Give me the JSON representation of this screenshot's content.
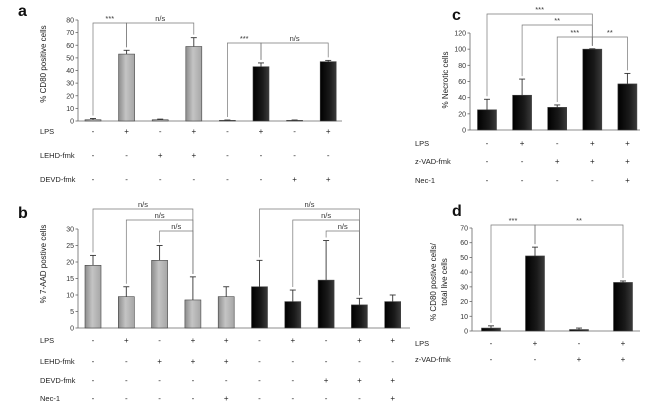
{
  "chart_data": [
    {
      "id": "a",
      "type": "bar",
      "panel_label": "a",
      "ylabel": "% CD80 positive cells",
      "ylim": [
        0,
        80
      ],
      "yticks": [
        0,
        10,
        20,
        30,
        40,
        50,
        60,
        70,
        80
      ],
      "values": [
        1.0,
        53,
        1.0,
        59,
        0.5,
        43,
        0.5,
        47
      ],
      "errors": [
        1.0,
        3,
        0.5,
        7,
        0.3,
        3,
        0.3,
        1
      ],
      "colors": [
        "#b4b4b4",
        "#b4b4b4",
        "#b4b4b4",
        "#b4b4b4",
        "#111111",
        "#111111",
        "#111111",
        "#111111"
      ],
      "conditions": [
        {
          "name": "LPS",
          "signs": [
            "-",
            "+",
            "-",
            "+",
            "-",
            "+",
            "-",
            "+"
          ]
        },
        {
          "name": "LEHD-fmk",
          "signs": [
            "-",
            "-",
            "+",
            "+",
            "-",
            "-",
            "-",
            "-"
          ]
        },
        {
          "name": "DEVD-fmk",
          "signs": [
            "-",
            "-",
            "-",
            "-",
            "-",
            "-",
            "+",
            "+"
          ]
        }
      ],
      "comparisons": [
        {
          "from": 0,
          "to": 1,
          "label": "***",
          "level": 0
        },
        {
          "from": 1,
          "to": 3,
          "label": "n/s",
          "level": 0
        },
        {
          "from": 4,
          "to": 5,
          "label": "***",
          "level": 1
        },
        {
          "from": 5,
          "to": 7,
          "label": "n/s",
          "level": 1
        }
      ]
    },
    {
      "id": "b",
      "type": "bar",
      "panel_label": "b",
      "ylabel": "% 7-AAD postive cells",
      "ylim": [
        0,
        30
      ],
      "yticks": [
        0,
        5,
        10,
        15,
        20,
        25,
        30
      ],
      "values": [
        19,
        9.5,
        20.5,
        8.5,
        9.5,
        12.5,
        8,
        14.5,
        7,
        8
      ],
      "errors": [
        3,
        3,
        4.5,
        7,
        3,
        8,
        3.5,
        12,
        2,
        2
      ],
      "colors": [
        "#b4b4b4",
        "#b4b4b4",
        "#b4b4b4",
        "#b4b4b4",
        "#b4b4b4",
        "#111111",
        "#111111",
        "#111111",
        "#111111",
        "#111111"
      ],
      "conditions": [
        {
          "name": "LPS",
          "signs": [
            "-",
            "+",
            "-",
            "+",
            "+",
            "-",
            "+",
            "-",
            "+",
            "+"
          ]
        },
        {
          "name": "LEHD-fmk",
          "signs": [
            "-",
            "-",
            "+",
            "+",
            "+",
            "-",
            "-",
            "-",
            "-",
            "-"
          ]
        },
        {
          "name": "DEVD-fmk",
          "signs": [
            "-",
            "-",
            "-",
            "-",
            "-",
            "-",
            "-",
            "+",
            "+",
            "+"
          ]
        },
        {
          "name": "Nec-1",
          "signs": [
            "-",
            "-",
            "-",
            "-",
            "+",
            "-",
            "-",
            "-",
            "-",
            "+"
          ]
        }
      ],
      "comparisons": [
        {
          "from": 0,
          "to": 3,
          "label": "n/s",
          "level": 3
        },
        {
          "from": 1,
          "to": 3,
          "label": "n/s",
          "level": 2
        },
        {
          "from": 2,
          "to": 3,
          "label": "n/s",
          "level": 1
        },
        {
          "from": 5,
          "to": 8,
          "label": "n/s",
          "level": 3
        },
        {
          "from": 6,
          "to": 8,
          "label": "n/s",
          "level": 2
        },
        {
          "from": 7,
          "to": 8,
          "label": "n/s",
          "level": 1
        }
      ]
    },
    {
      "id": "c",
      "type": "bar",
      "panel_label": "c",
      "ylabel": "% Necrotic cells",
      "ylim": [
        0,
        120
      ],
      "yticks": [
        0,
        20,
        40,
        60,
        80,
        100,
        120
      ],
      "values": [
        25,
        43,
        28,
        100,
        57
      ],
      "errors": [
        13,
        20,
        3,
        0.5,
        13
      ],
      "colors": [
        "#111111",
        "#111111",
        "#111111",
        "#111111",
        "#111111"
      ],
      "conditions": [
        {
          "name": "LPS",
          "signs": [
            "-",
            "+",
            "-",
            "+",
            "+"
          ]
        },
        {
          "name": "z-VAD-fmk",
          "signs": [
            "-",
            "-",
            "+",
            "+",
            "+"
          ]
        },
        {
          "name": "Nec-1",
          "signs": [
            "-",
            "-",
            "-",
            "-",
            "+"
          ]
        }
      ],
      "comparisons": [
        {
          "from": 0,
          "to": 3,
          "label": "***",
          "level": 3
        },
        {
          "from": 1,
          "to": 3,
          "label": "**",
          "level": 2
        },
        {
          "from": 2,
          "to": 3,
          "label": "***",
          "level": 1
        },
        {
          "from": 3,
          "to": 4,
          "label": "**",
          "level": 1
        }
      ]
    },
    {
      "id": "d",
      "type": "bar",
      "panel_label": "d",
      "ylabel_lines": [
        "% CD80 postive cells/",
        "total live cells"
      ],
      "ylim": [
        0,
        70
      ],
      "yticks": [
        0,
        10,
        20,
        30,
        40,
        50,
        60,
        70
      ],
      "values": [
        2,
        51,
        1,
        33
      ],
      "errors": [
        1.5,
        6,
        1,
        1
      ],
      "colors": [
        "#111111",
        "#111111",
        "#111111",
        "#111111"
      ],
      "conditions": [
        {
          "name": "LPS",
          "signs": [
            "-",
            "+",
            "-",
            "+"
          ]
        },
        {
          "name": "z-VAD-fmk",
          "signs": [
            "-",
            "-",
            "+",
            "+"
          ]
        }
      ],
      "comparisons": [
        {
          "from": 0,
          "to": 1,
          "label": "***",
          "level": 1
        },
        {
          "from": 1,
          "to": 3,
          "label": "**",
          "level": 1
        }
      ]
    }
  ]
}
